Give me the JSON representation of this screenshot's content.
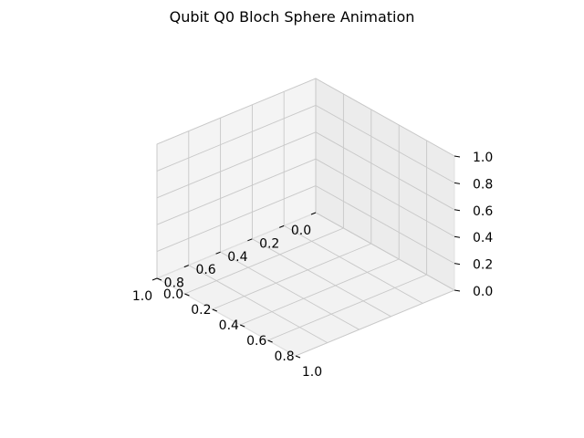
{
  "figure": {
    "title": "Qubit Q0 Bloch Sphere Animation"
  },
  "chart_data": {
    "type": "scatter",
    "projection": "3d",
    "title": "Qubit Q0 Bloch Sphere Animation",
    "series": [],
    "grid": true,
    "xlim": [
      0,
      1
    ],
    "ylim": [
      0,
      1
    ],
    "zlim": [
      0,
      1
    ],
    "x_ticks": [
      "0.0",
      "0.2",
      "0.4",
      "0.6",
      "0.8",
      "1.0"
    ],
    "y_ticks": [
      "0.0",
      "0.2",
      "0.4",
      "0.6",
      "0.8",
      "1.0"
    ],
    "z_ticks": [
      "0.0",
      "0.2",
      "0.4",
      "0.6",
      "0.8",
      "1.0"
    ],
    "colors": {
      "pane_left": "#f4f4f4",
      "pane_right": "#ececec",
      "pane_floor": "#f2f2f2",
      "grid": "#c8c8c8",
      "pane_edge": "#e0e0e0",
      "axis_line": "#000000"
    }
  }
}
